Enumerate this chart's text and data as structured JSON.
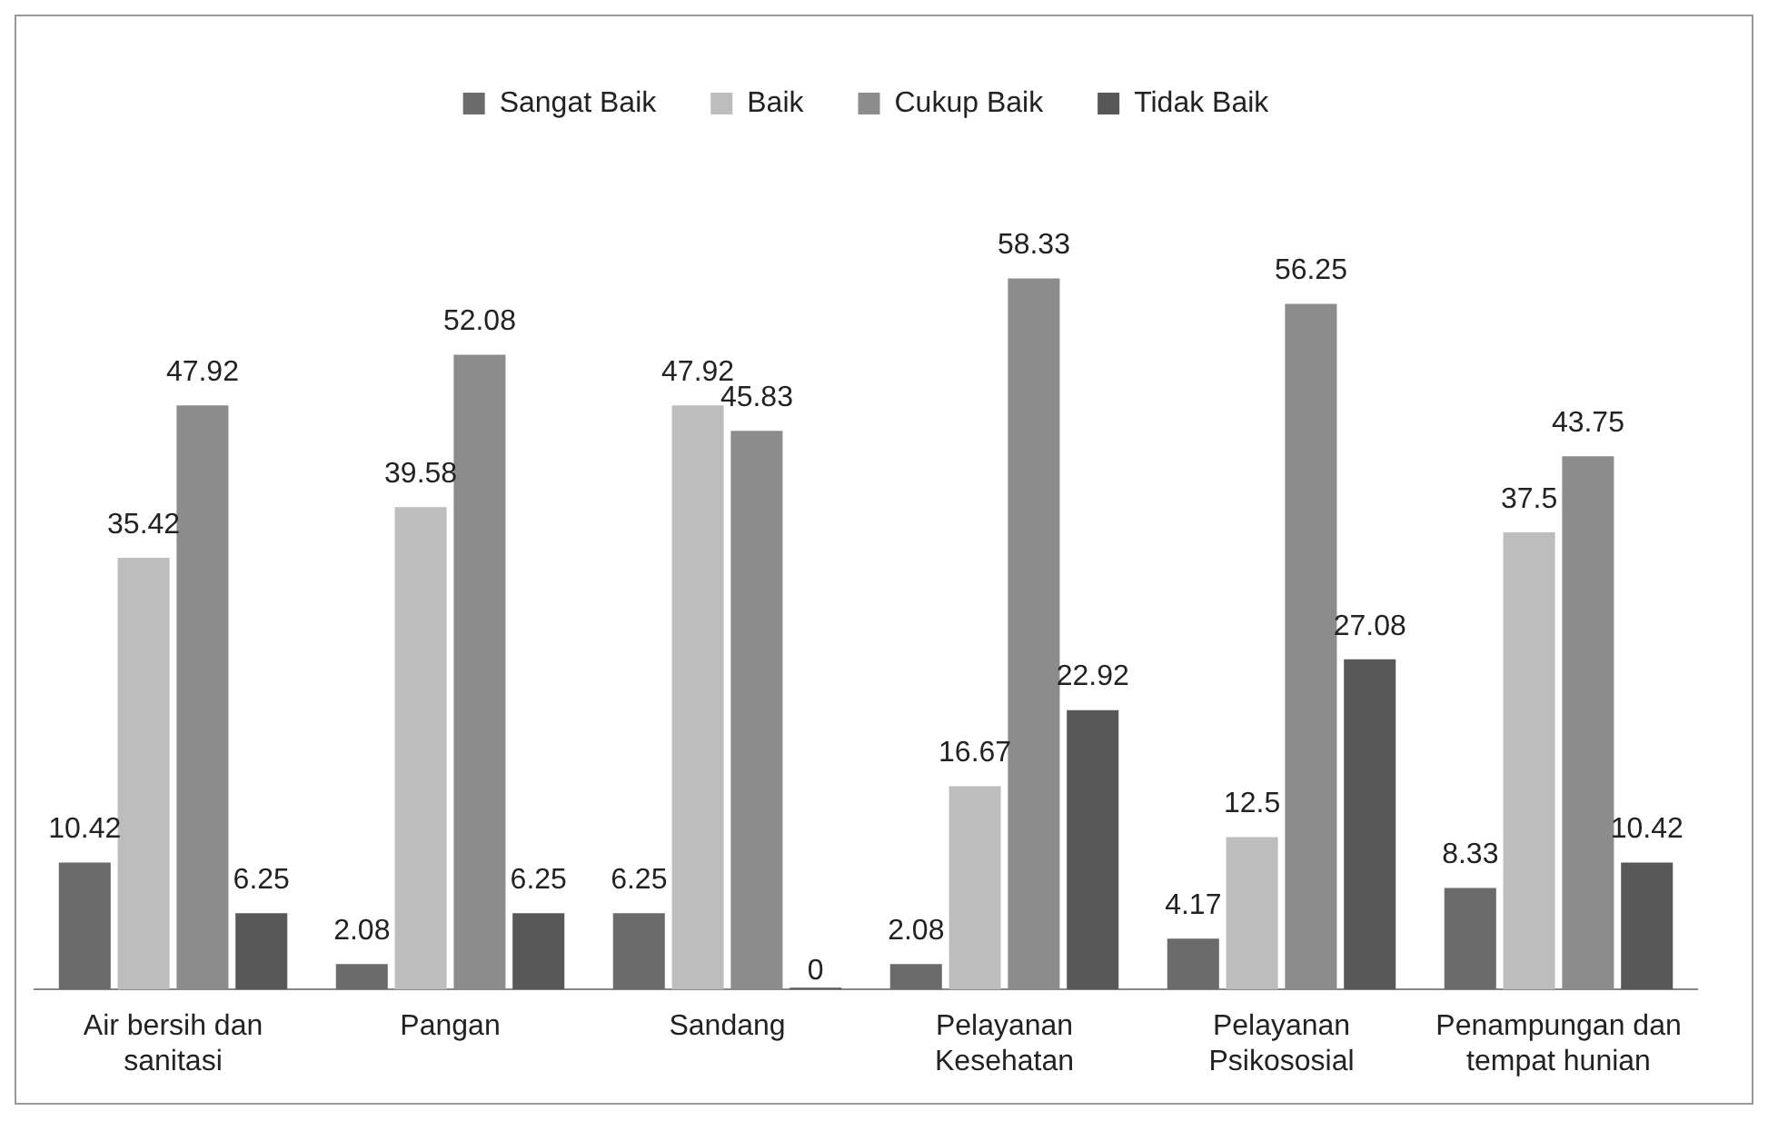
{
  "chart_data": {
    "type": "bar",
    "categories": [
      "Air bersih dan sanitasi",
      "Pangan",
      "Sandang",
      "Pelayanan Kesehatan",
      "Pelayanan Psikososial",
      "Penampungan dan tempat hunian"
    ],
    "series": [
      {
        "name": "Sangat Baik",
        "color": "#6b6b6b",
        "values": [
          10.42,
          2.08,
          6.25,
          2.08,
          4.17,
          8.33
        ]
      },
      {
        "name": "Baik",
        "color": "#bdbdbd",
        "values": [
          35.42,
          39.58,
          47.92,
          16.67,
          12.5,
          37.5
        ]
      },
      {
        "name": "Cukup Baik",
        "color": "#8c8c8c",
        "values": [
          47.92,
          52.08,
          45.83,
          58.33,
          56.25,
          43.75
        ]
      },
      {
        "name": "Tidak Baik",
        "color": "#585858",
        "values": [
          6.25,
          6.25,
          0,
          22.92,
          27.08,
          10.42
        ]
      }
    ],
    "data_labels": true,
    "legend": "top",
    "grid": false
  }
}
